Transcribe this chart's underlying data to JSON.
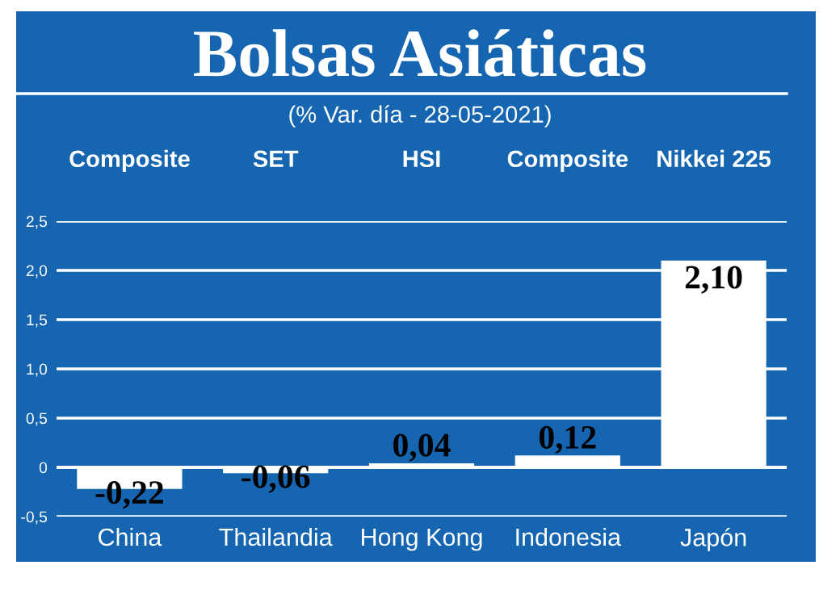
{
  "chart_data": {
    "type": "bar",
    "title": "Bolsas Asiáticas",
    "subtitle": "(% Var. día - 28-05-2021)",
    "categories": [
      "China",
      "Thailandia",
      "Hong Kong",
      "Indonesia",
      "Japón"
    ],
    "values": [
      -0.22,
      -0.06,
      0.04,
      0.12,
      2.1
    ],
    "value_labels": [
      "-0,22",
      "-0,06",
      "0,04",
      "0,12",
      "2,10"
    ],
    "color": "#ffffff",
    "annotations": [
      "Composite",
      "SET",
      "HSI",
      "Composite",
      "Nikkei 225"
    ],
    "ylim": [
      -0.5,
      2.5
    ],
    "yticks": [
      {
        "value": -0.5,
        "label": "-0,5"
      },
      0,
      {
        "value": 0.5,
        "label": "0,5"
      },
      {
        "value": 1.0,
        "label": "1,0"
      },
      {
        "value": 1.5,
        "label": "1,5"
      },
      {
        "value": 2.0,
        "label": "2,0"
      },
      {
        "value": 2.5,
        "label": "2,5"
      }
    ],
    "grid": "y"
  }
}
